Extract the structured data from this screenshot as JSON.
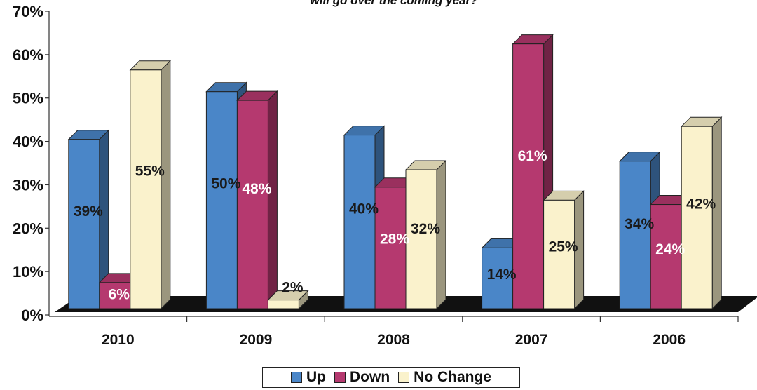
{
  "chart_data": {
    "type": "bar",
    "title": "will go over the coming year?",
    "categories": [
      "2010",
      "2009",
      "2008",
      "2007",
      "2006"
    ],
    "series": [
      {
        "name": "Up",
        "values": [
          39,
          50,
          40,
          14,
          34
        ],
        "labels": [
          "39%",
          "50%",
          "40%",
          "14%",
          "34%"
        ],
        "color": "#4a86c8",
        "label_color": "#1a1a1a"
      },
      {
        "name": "Down",
        "values": [
          6,
          48,
          28,
          61,
          24
        ],
        "labels": [
          "6%",
          "48%",
          "28%",
          "61%",
          "24%"
        ],
        "color": "#b5396f",
        "label_color": "#ffffff"
      },
      {
        "name": "No Change",
        "values": [
          55,
          2,
          32,
          25,
          42
        ],
        "labels": [
          "55%",
          "2%",
          "32%",
          "25%",
          "42%"
        ],
        "color": "#faf2cc",
        "label_color": "#1a1a1a"
      }
    ],
    "y_ticks": [
      "0%",
      "10%",
      "20%",
      "30%",
      "40%",
      "50%",
      "60%",
      "70%"
    ],
    "ylim": [
      0,
      70
    ],
    "grid": false,
    "legend_position": "bottom-center",
    "style": "3d-columns"
  }
}
